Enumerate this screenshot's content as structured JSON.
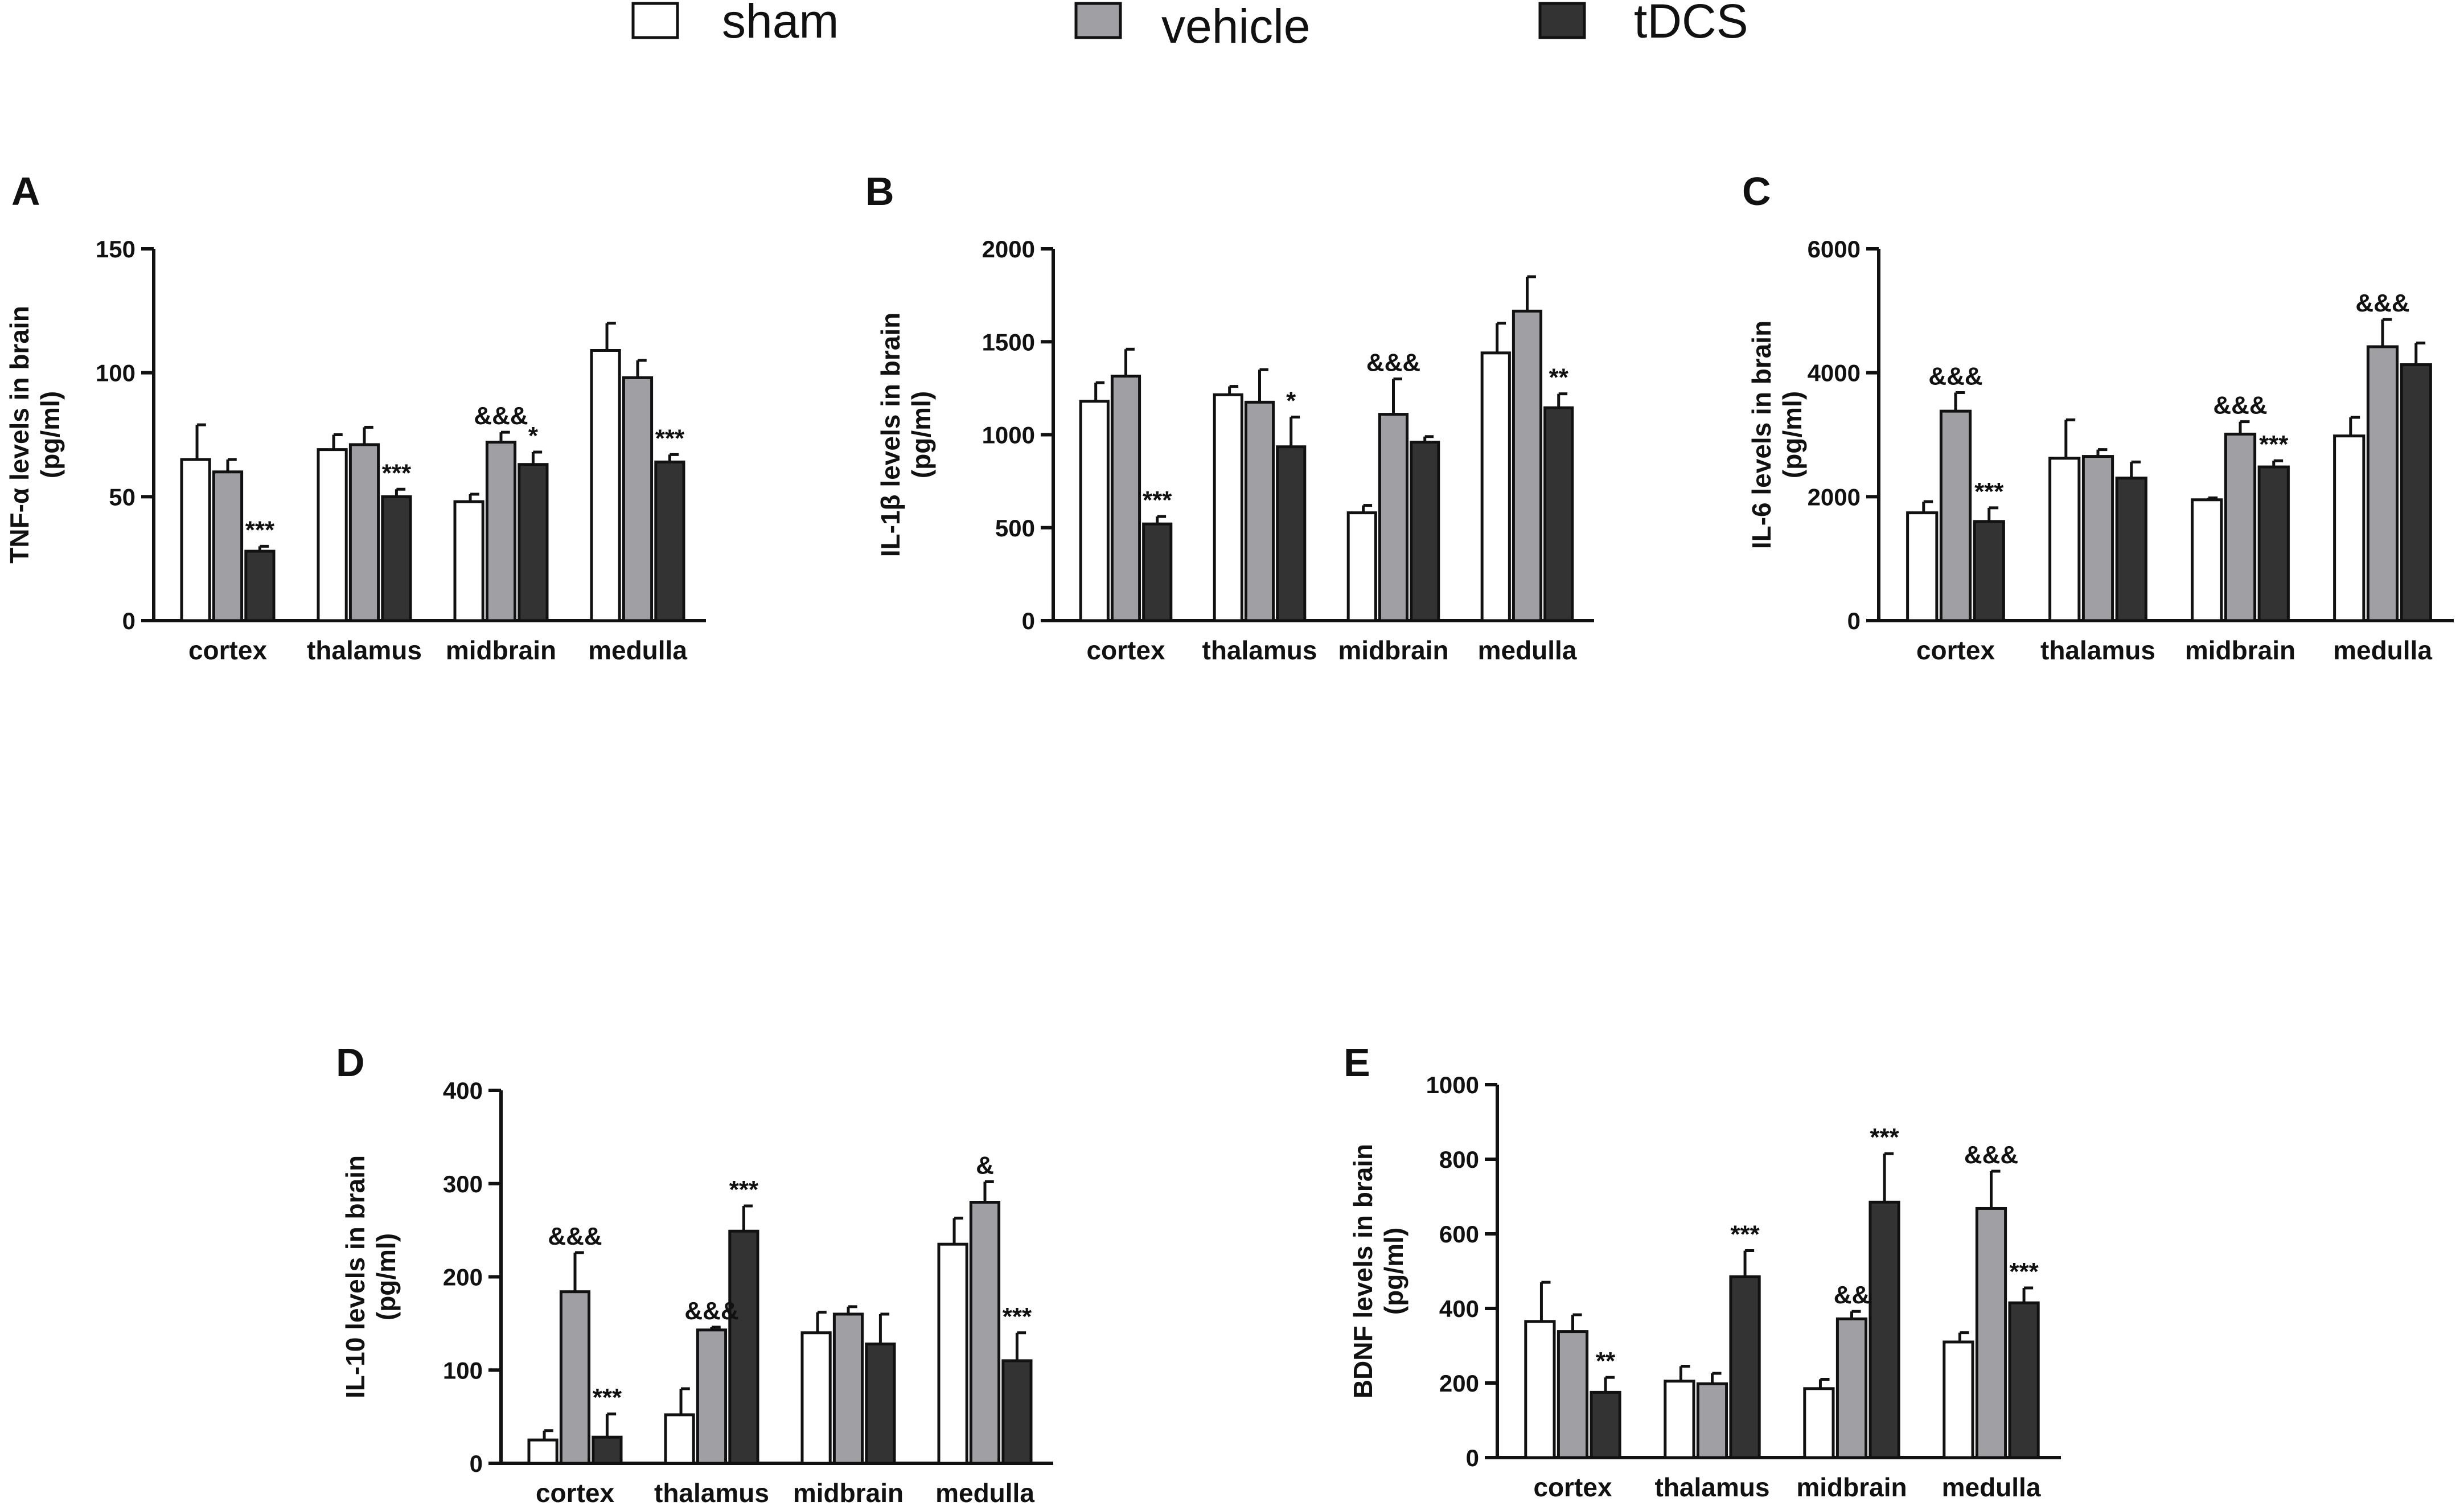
{
  "legend": [
    {
      "name": "sham",
      "color": "#ffffff"
    },
    {
      "name": "vehicle",
      "color": "#a0a0a4"
    },
    {
      "name": "tDCS",
      "color": "#333333"
    }
  ],
  "chart_data": [
    {
      "panel": "A",
      "type": "bar",
      "ylabel_lines": [
        "TNF-α levels in brain",
        "(pg/ml)"
      ],
      "ylim": [
        0,
        150
      ],
      "yticks": [
        0,
        50,
        100,
        150
      ],
      "categories": [
        "cortex",
        "thalamus",
        "midbrain",
        "medulla"
      ],
      "series": [
        {
          "name": "sham",
          "values": [
            65,
            69,
            48,
            109
          ],
          "errors": [
            14,
            6,
            3,
            11
          ]
        },
        {
          "name": "vehicle",
          "values": [
            60,
            71,
            72,
            98
          ],
          "errors": [
            5,
            7,
            4,
            7
          ]
        },
        {
          "name": "tDCS",
          "values": [
            28,
            50,
            63,
            64
          ],
          "errors": [
            2,
            3,
            5,
            3
          ]
        }
      ],
      "annotations": [
        {
          "category": 0,
          "series": 2,
          "text": "***"
        },
        {
          "category": 1,
          "series": 2,
          "text": "***"
        },
        {
          "category": 2,
          "series": 1,
          "text": "&&&"
        },
        {
          "category": 2,
          "series": 2,
          "text": "*"
        },
        {
          "category": 3,
          "series": 2,
          "text": "***"
        }
      ]
    },
    {
      "panel": "B",
      "type": "bar",
      "ylabel_lines": [
        "IL-1β levels in brain",
        "(pg/ml)"
      ],
      "ylim": [
        0,
        2000
      ],
      "yticks": [
        0,
        500,
        1000,
        1500,
        2000
      ],
      "categories": [
        "cortex",
        "thalamus",
        "midbrain",
        "medulla"
      ],
      "series": [
        {
          "name": "sham",
          "values": [
            1180,
            1215,
            580,
            1440
          ],
          "errors": [
            100,
            45,
            40,
            160
          ]
        },
        {
          "name": "vehicle",
          "values": [
            1315,
            1175,
            1110,
            1665
          ],
          "errors": [
            145,
            175,
            190,
            185
          ]
        },
        {
          "name": "tDCS",
          "values": [
            520,
            935,
            960,
            1145
          ],
          "errors": [
            40,
            160,
            30,
            75
          ]
        }
      ],
      "annotations": [
        {
          "category": 0,
          "series": 2,
          "text": "***"
        },
        {
          "category": 1,
          "series": 2,
          "text": "*"
        },
        {
          "category": 2,
          "series": 1,
          "text": "&&&"
        },
        {
          "category": 3,
          "series": 2,
          "text": "**"
        }
      ]
    },
    {
      "panel": "C",
      "type": "bar",
      "ylabel_lines": [
        "IL-6 levels in brain",
        "(pg/ml)"
      ],
      "ylim": [
        0,
        6000
      ],
      "yticks": [
        0,
        2000,
        4000,
        6000
      ],
      "categories": [
        "cortex",
        "thalamus",
        "midbrain",
        "medulla"
      ],
      "series": [
        {
          "name": "sham",
          "values": [
            1740,
            2620,
            1950,
            2980
          ],
          "errors": [
            180,
            620,
            30,
            300
          ]
        },
        {
          "name": "vehicle",
          "values": [
            3380,
            2650,
            3010,
            4420
          ],
          "errors": [
            300,
            110,
            200,
            440
          ]
        },
        {
          "name": "tDCS",
          "values": [
            1600,
            2300,
            2480,
            4130
          ],
          "errors": [
            220,
            260,
            100,
            350
          ]
        }
      ],
      "annotations": [
        {
          "category": 0,
          "series": 1,
          "text": "&&&"
        },
        {
          "category": 0,
          "series": 2,
          "text": "***"
        },
        {
          "category": 2,
          "series": 1,
          "text": "&&&"
        },
        {
          "category": 2,
          "series": 2,
          "text": "***"
        },
        {
          "category": 3,
          "series": 1,
          "text": "&&&"
        }
      ]
    },
    {
      "panel": "D",
      "type": "bar",
      "ylabel_lines": [
        "IL-10 levels in brain",
        "(pg/ml)"
      ],
      "ylim": [
        0,
        400
      ],
      "yticks": [
        0,
        100,
        200,
        300,
        400
      ],
      "categories": [
        "cortex",
        "thalamus",
        "midbrain",
        "medulla"
      ],
      "series": [
        {
          "name": "sham",
          "values": [
            25,
            52,
            140,
            235
          ],
          "errors": [
            10,
            28,
            22,
            28
          ]
        },
        {
          "name": "vehicle",
          "values": [
            184,
            143,
            160,
            280
          ],
          "errors": [
            42,
            3,
            8,
            22
          ]
        },
        {
          "name": "tDCS",
          "values": [
            28,
            249,
            128,
            110
          ],
          "errors": [
            25,
            27,
            32,
            30
          ]
        }
      ],
      "annotations": [
        {
          "category": 0,
          "series": 1,
          "text": "&&&"
        },
        {
          "category": 0,
          "series": 2,
          "text": "***"
        },
        {
          "category": 1,
          "series": 1,
          "text": "&&&"
        },
        {
          "category": 1,
          "series": 2,
          "text": "***"
        },
        {
          "category": 3,
          "series": 1,
          "text": "&"
        },
        {
          "category": 3,
          "series": 2,
          "text": "***"
        }
      ]
    },
    {
      "panel": "E",
      "type": "bar",
      "ylabel_lines": [
        "BDNF levels in brain",
        "(pg/ml)"
      ],
      "ylim": [
        0,
        1000
      ],
      "yticks": [
        0,
        200,
        400,
        600,
        800,
        1000
      ],
      "categories": [
        "cortex",
        "thalamus",
        "midbrain",
        "medulla"
      ],
      "series": [
        {
          "name": "sham",
          "values": [
            365,
            205,
            185,
            310
          ],
          "errors": [
            105,
            40,
            25,
            25
          ]
        },
        {
          "name": "vehicle",
          "values": [
            338,
            198,
            372,
            668
          ],
          "errors": [
            45,
            28,
            20,
            100
          ]
        },
        {
          "name": "tDCS",
          "values": [
            175,
            485,
            685,
            415
          ],
          "errors": [
            40,
            70,
            130,
            40
          ]
        }
      ],
      "annotations": [
        {
          "category": 0,
          "series": 2,
          "text": "**"
        },
        {
          "category": 1,
          "series": 2,
          "text": "***"
        },
        {
          "category": 2,
          "series": 1,
          "text": "&&"
        },
        {
          "category": 2,
          "series": 2,
          "text": "***"
        },
        {
          "category": 3,
          "series": 1,
          "text": "&&&"
        },
        {
          "category": 3,
          "series": 2,
          "text": "***"
        }
      ]
    }
  ]
}
